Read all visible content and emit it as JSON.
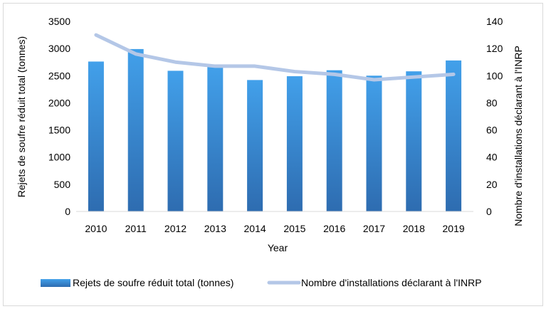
{
  "chart_data": {
    "type": "bar",
    "categories": [
      "2010",
      "2011",
      "2012",
      "2013",
      "2014",
      "2015",
      "2016",
      "2017",
      "2018",
      "2019"
    ],
    "series": [
      {
        "name": "Rejets de soufre réduit total (tonnes)",
        "type": "bar",
        "axis": "left",
        "values": [
          2760,
          2990,
          2590,
          2670,
          2420,
          2490,
          2600,
          2500,
          2580,
          2780
        ],
        "color": "#3a8fd9"
      },
      {
        "name": "Nombre d'installations déclarant à l'INRP",
        "type": "line",
        "axis": "right",
        "values": [
          130,
          116,
          110,
          107,
          107,
          103,
          101,
          97,
          99,
          101
        ],
        "color": "#b4c7e7"
      }
    ],
    "xlabel": "Year",
    "ylabel": "Rejets de soufre réduit total (tonnes)",
    "y2label": "Nombre d'installations déclarant à l'INRP",
    "ylim": [
      0,
      3500
    ],
    "y2lim": [
      0,
      140
    ],
    "yticks": [
      "0",
      "500",
      "1000",
      "1500",
      "2000",
      "2500",
      "3000",
      "3500"
    ],
    "y2ticks": [
      "0",
      "20",
      "40",
      "60",
      "80",
      "100",
      "120",
      "140"
    ],
    "grid": false,
    "legend_position": "bottom"
  }
}
